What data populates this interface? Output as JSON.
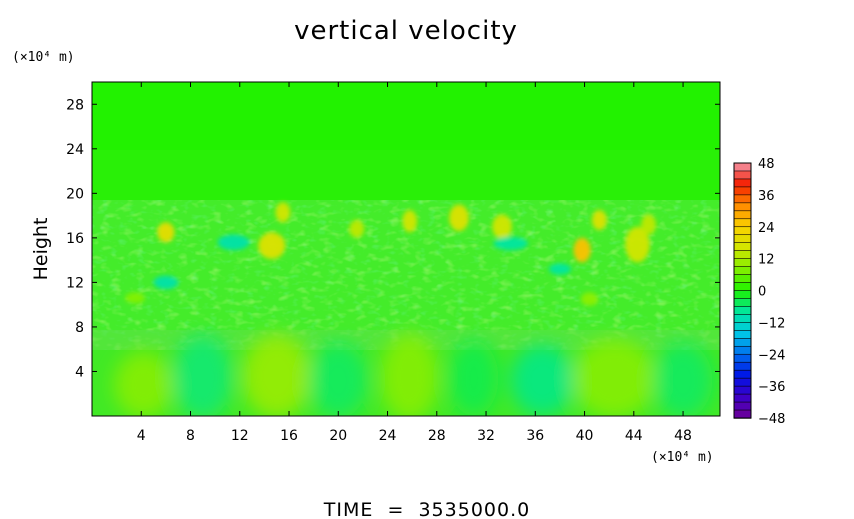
{
  "chart_data": {
    "type": "heatmap",
    "title": "vertical velocity",
    "xlabel": "",
    "ylabel": "Height",
    "x_unit": "(×10⁴ m)",
    "y_unit": "(×10⁴ m)",
    "footer": "TIME  =  3535000.0",
    "xlim": [
      0,
      51
    ],
    "ylim": [
      0,
      30
    ],
    "x_ticks": [
      4,
      8,
      12,
      16,
      20,
      24,
      28,
      32,
      36,
      40,
      44,
      48
    ],
    "y_ticks": [
      4,
      8,
      12,
      16,
      20,
      24,
      28
    ],
    "colorbar": {
      "min": -48,
      "max": 48,
      "ticks": [
        48,
        36,
        24,
        12,
        0,
        -12,
        -24,
        -36,
        -48
      ],
      "tick_labels": [
        "48",
        "36",
        "24",
        "12",
        "0",
        "−12",
        "−24",
        "−36",
        "−48"
      ]
    },
    "background_value": 3,
    "features": [
      {
        "kind": "cell",
        "x": 4.2,
        "y": 2.8,
        "rx": 2.4,
        "ry": 3.0,
        "value": 9
      },
      {
        "kind": "cell",
        "x": 9.0,
        "y": 3.5,
        "rx": 2.4,
        "ry": 3.8,
        "value": -6
      },
      {
        "kind": "cell",
        "x": 15.0,
        "y": 3.6,
        "rx": 2.8,
        "ry": 3.8,
        "value": 11
      },
      {
        "kind": "cell",
        "x": 20.0,
        "y": 3.2,
        "rx": 2.4,
        "ry": 3.4,
        "value": -5
      },
      {
        "kind": "cell",
        "x": 25.8,
        "y": 3.5,
        "rx": 2.4,
        "ry": 4.0,
        "value": 9
      },
      {
        "kind": "cell",
        "x": 31.0,
        "y": 3.4,
        "rx": 2.0,
        "ry": 3.4,
        "value": -4
      },
      {
        "kind": "cell",
        "x": 36.6,
        "y": 3.2,
        "rx": 2.6,
        "ry": 3.2,
        "value": -7
      },
      {
        "kind": "cell",
        "x": 42.4,
        "y": 3.4,
        "rx": 3.4,
        "ry": 3.6,
        "value": 9
      },
      {
        "kind": "cell",
        "x": 48.0,
        "y": 3.2,
        "rx": 2.4,
        "ry": 3.4,
        "value": -5
      },
      {
        "kind": "spot",
        "x": 6.0,
        "y": 16.5,
        "rx": 0.7,
        "ry": 0.9,
        "value": 20
      },
      {
        "kind": "spot",
        "x": 14.6,
        "y": 15.3,
        "rx": 1.1,
        "ry": 1.2,
        "value": 18
      },
      {
        "kind": "spot",
        "x": 15.5,
        "y": 18.3,
        "rx": 0.6,
        "ry": 0.9,
        "value": 16
      },
      {
        "kind": "spot",
        "x": 21.5,
        "y": 16.8,
        "rx": 0.6,
        "ry": 0.8,
        "value": 14
      },
      {
        "kind": "spot",
        "x": 25.8,
        "y": 17.5,
        "rx": 0.6,
        "ry": 1.0,
        "value": 16
      },
      {
        "kind": "spot",
        "x": 29.8,
        "y": 17.8,
        "rx": 0.8,
        "ry": 1.2,
        "value": 18
      },
      {
        "kind": "spot",
        "x": 33.3,
        "y": 17.0,
        "rx": 0.8,
        "ry": 1.1,
        "value": 16
      },
      {
        "kind": "spot",
        "x": 39.8,
        "y": 14.9,
        "rx": 0.7,
        "ry": 1.1,
        "value": 26
      },
      {
        "kind": "spot",
        "x": 41.2,
        "y": 17.6,
        "rx": 0.6,
        "ry": 0.9,
        "value": 18
      },
      {
        "kind": "spot",
        "x": 44.3,
        "y": 15.4,
        "rx": 1.0,
        "ry": 1.6,
        "value": 16
      },
      {
        "kind": "spot",
        "x": 45.2,
        "y": 17.2,
        "rx": 0.6,
        "ry": 0.9,
        "value": 14
      },
      {
        "kind": "spot",
        "x": 11.5,
        "y": 15.6,
        "rx": 1.3,
        "ry": 0.7,
        "value": -9
      },
      {
        "kind": "spot",
        "x": 6.0,
        "y": 12.0,
        "rx": 1.0,
        "ry": 0.6,
        "value": -9
      },
      {
        "kind": "spot",
        "x": 34.0,
        "y": 15.5,
        "rx": 1.4,
        "ry": 0.6,
        "value": -8
      },
      {
        "kind": "spot",
        "x": 38.0,
        "y": 13.2,
        "rx": 0.9,
        "ry": 0.5,
        "value": -8
      },
      {
        "kind": "spot",
        "x": 3.5,
        "y": 10.6,
        "rx": 0.8,
        "ry": 0.5,
        "value": 8
      },
      {
        "kind": "spot",
        "x": 40.4,
        "y": 10.5,
        "rx": 0.7,
        "ry": 0.6,
        "value": 9
      }
    ]
  }
}
